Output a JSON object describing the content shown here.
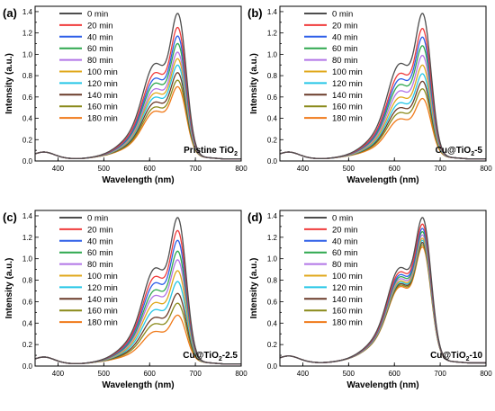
{
  "chart_data": [
    {
      "panel_label": "(a)",
      "type": "line",
      "sample_label": {
        "prefix": "Pristine TiO",
        "sub": "2",
        "suffix": ""
      },
      "xlabel": "Wavelength (nm)",
      "ylabel": "Intensity (a.u.)",
      "xlim": [
        350,
        800
      ],
      "ylim": [
        0,
        1.45
      ],
      "x_ticks": [
        400,
        500,
        600,
        700,
        800
      ],
      "y_ticks": [
        0.0,
        0.2,
        0.4,
        0.6,
        0.8,
        1.0,
        1.2,
        1.4
      ],
      "legend_position": "top-left",
      "peak_values": [
        1.37,
        1.24,
        1.16,
        1.09,
        1.01,
        0.95,
        0.89,
        0.82,
        0.75,
        0.69
      ],
      "baseline": 0.04
    },
    {
      "panel_label": "(b)",
      "type": "line",
      "sample_label": {
        "prefix": "Cu@TiO",
        "sub": "2",
        "suffix": "-5"
      },
      "xlabel": "Wavelength (nm)",
      "ylabel": "Intensity (a.u.)",
      "xlim": [
        350,
        800
      ],
      "ylim": [
        0,
        1.45
      ],
      "x_ticks": [
        400,
        500,
        600,
        700,
        800
      ],
      "y_ticks": [
        0.0,
        0.2,
        0.4,
        0.6,
        0.8,
        1.0,
        1.2,
        1.4
      ],
      "legend_position": "top-left",
      "peak_values": [
        1.37,
        1.23,
        1.15,
        1.07,
        0.98,
        0.89,
        0.81,
        0.74,
        0.67,
        0.58
      ],
      "baseline": 0.04
    },
    {
      "panel_label": "(c)",
      "type": "line",
      "sample_label": {
        "prefix": "Cu@TiO",
        "sub": "2",
        "suffix": "-2.5"
      },
      "xlabel": "Wavelength (nm)",
      "ylabel": "Intensity (a.u.)",
      "xlim": [
        350,
        800
      ],
      "ylim": [
        0,
        1.45
      ],
      "x_ticks": [
        400,
        500,
        600,
        700,
        800
      ],
      "y_ticks": [
        0.0,
        0.2,
        0.4,
        0.6,
        0.8,
        1.0,
        1.2,
        1.4
      ],
      "legend_position": "top-left",
      "peak_values": [
        1.37,
        1.25,
        1.16,
        1.06,
        0.98,
        0.88,
        0.78,
        0.67,
        0.58,
        0.47
      ],
      "baseline": 0.04
    },
    {
      "panel_label": "(d)",
      "type": "line",
      "sample_label": {
        "prefix": "Cu@TiO",
        "sub": "2",
        "suffix": "-10"
      },
      "xlabel": "Wavelength (nm)",
      "ylabel": "Intensity (a.u.)",
      "xlim": [
        350,
        800
      ],
      "ylim": [
        0,
        1.45
      ],
      "x_ticks": [
        400,
        500,
        600,
        700,
        800
      ],
      "y_ticks": [
        0.0,
        0.2,
        0.4,
        0.6,
        0.8,
        1.0,
        1.2,
        1.4
      ],
      "legend_position": "top-left",
      "peak_values": [
        1.37,
        1.31,
        1.27,
        1.24,
        1.21,
        1.18,
        1.16,
        1.14,
        1.12,
        1.1
      ],
      "baseline": 0.05
    }
  ],
  "series": [
    {
      "name": "0 min",
      "color": "#4d4d4d"
    },
    {
      "name": "20 min",
      "color": "#f03c3c"
    },
    {
      "name": "40 min",
      "color": "#2e5fe8"
    },
    {
      "name": "60 min",
      "color": "#2fa84f"
    },
    {
      "name": "80 min",
      "color": "#b275e6"
    },
    {
      "name": "100 min",
      "color": "#e0a81c"
    },
    {
      "name": "120 min",
      "color": "#26c6e6"
    },
    {
      "name": "140 min",
      "color": "#6a3b2a"
    },
    {
      "name": "160 min",
      "color": "#8a8a1a"
    },
    {
      "name": "180 min",
      "color": "#f07a1a"
    }
  ]
}
